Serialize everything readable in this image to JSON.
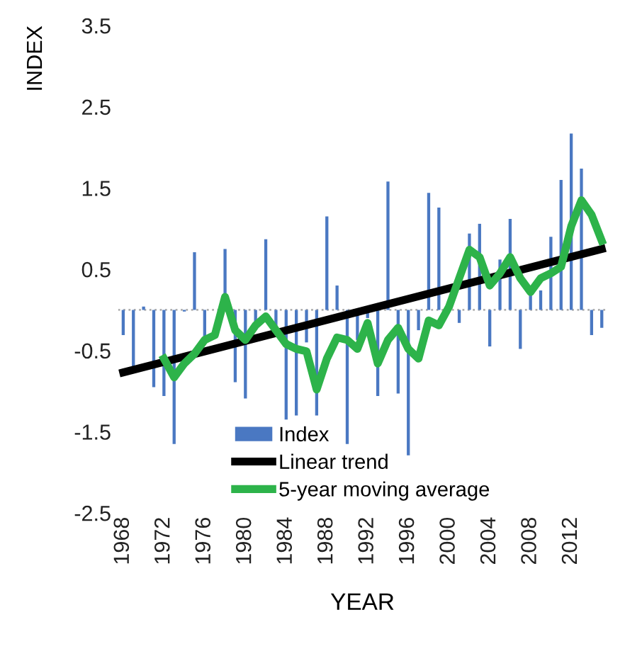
{
  "chart_data": {
    "type": "bar",
    "xlabel": "YEAR",
    "ylabel": "INDEX",
    "x": [
      1968,
      1969,
      1970,
      1971,
      1972,
      1973,
      1974,
      1975,
      1976,
      1977,
      1978,
      1979,
      1980,
      1981,
      1982,
      1983,
      1984,
      1985,
      1986,
      1987,
      1988,
      1989,
      1990,
      1991,
      1992,
      1993,
      1994,
      1995,
      1996,
      1997,
      1998,
      1999,
      2000,
      2001,
      2002,
      2003,
      2004,
      2005,
      2006,
      2007,
      2008,
      2009,
      2010,
      2011,
      2012,
      2013,
      2014,
      2015
    ],
    "series": [
      {
        "name": "Index",
        "color": "#4a78c2",
        "values": [
          -0.31,
          -0.77,
          0.04,
          -0.95,
          -1.06,
          -1.65,
          -0.02,
          0.71,
          -0.37,
          null,
          0.75,
          -0.89,
          -1.09,
          -0.2,
          0.87,
          -0.3,
          -1.35,
          -1.3,
          -0.4,
          -1.3,
          1.15,
          0.3,
          -1.65,
          -0.37,
          -0.1,
          -1.06,
          1.58,
          -1.03,
          -1.79,
          -0.25,
          1.44,
          1.26,
          null,
          -0.16,
          0.94,
          1.06,
          -0.45,
          0.62,
          1.12,
          -0.48,
          0.22,
          0.24,
          0.9,
          1.6,
          2.17,
          1.74,
          -0.31,
          -0.22
        ]
      },
      {
        "name": "Linear trend",
        "type": "line",
        "color": "#000000",
        "x": [
          1968,
          2015
        ],
        "values": [
          -0.77,
          0.75
        ]
      },
      {
        "name": "5-year moving average",
        "type": "line",
        "color": "#2db34a",
        "x": [
          1972,
          1973,
          1974,
          1975,
          1976,
          1977,
          1978,
          1979,
          1980,
          1981,
          1982,
          1983,
          1984,
          1985,
          1986,
          1987,
          1988,
          1989,
          1990,
          1991,
          1992,
          1993,
          1994,
          1995,
          1996,
          1997,
          1998,
          1999,
          2000,
          2001,
          2002,
          2003,
          2004,
          2005,
          2006,
          2007,
          2008,
          2009,
          2010,
          2011,
          2012,
          2013,
          2014,
          2015
        ],
        "values": [
          -0.6,
          -0.83,
          -0.66,
          -0.54,
          -0.37,
          -0.31,
          0.16,
          -0.25,
          -0.37,
          -0.19,
          -0.08,
          -0.25,
          -0.42,
          -0.48,
          -0.51,
          -0.98,
          -0.6,
          -0.34,
          -0.37,
          -0.48,
          -0.16,
          -0.66,
          -0.37,
          -0.22,
          -0.48,
          -0.6,
          -0.13,
          -0.19,
          0.04,
          0.39,
          0.74,
          0.65,
          0.3,
          0.45,
          0.65,
          0.39,
          0.22,
          0.39,
          0.45,
          0.53,
          1.03,
          1.35,
          1.17,
          0.85
        ]
      }
    ],
    "xlim": [
      1967.5,
      2015.5
    ],
    "xticks": [
      1968,
      1972,
      1976,
      1980,
      1984,
      1988,
      1992,
      1996,
      2000,
      2004,
      2008,
      2012
    ],
    "ylim": [
      -2.5,
      3.5
    ],
    "yticks": [
      3.5,
      2.5,
      1.5,
      0.5,
      -0.5,
      -1.5,
      -2.5
    ],
    "ref_lines": [
      {
        "axis": "y",
        "value": 0,
        "color": "#b0b0b0",
        "line_style": "dotted"
      }
    ],
    "legend": "lower center",
    "grid": false
  }
}
